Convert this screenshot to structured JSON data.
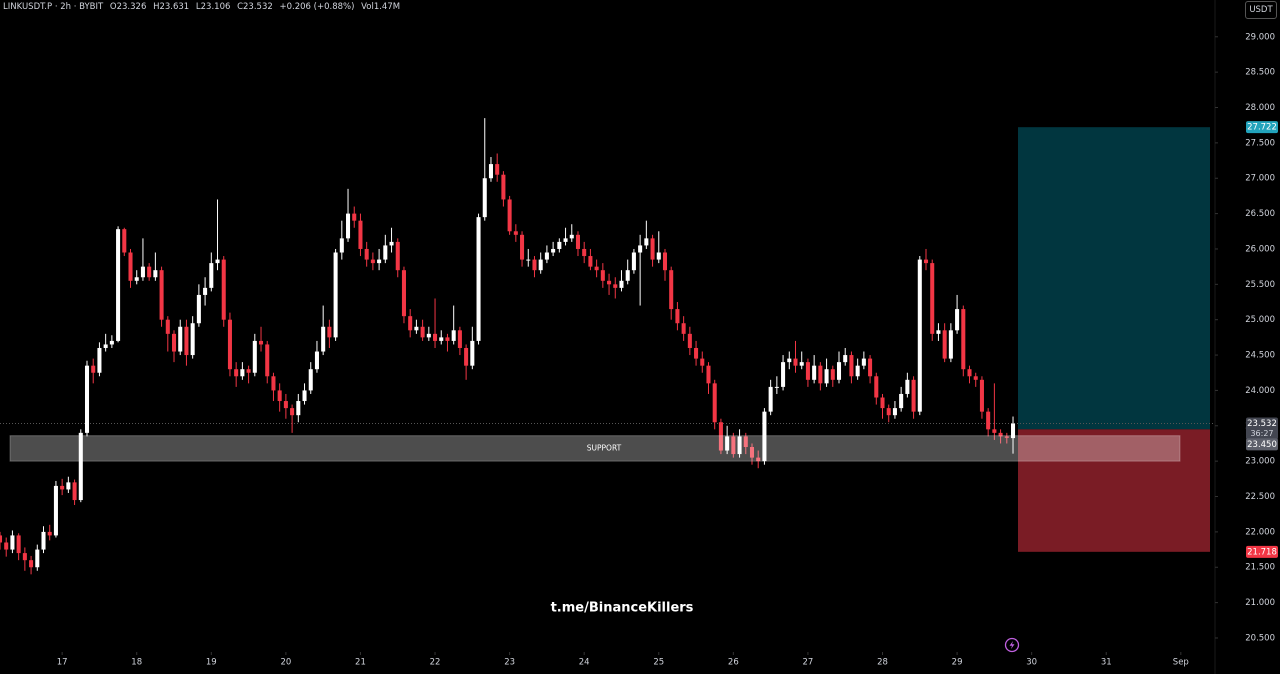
{
  "header": {
    "symbol": "LINKUSDT.P · 2h · BYBIT",
    "open": "O23.326",
    "high": "H23.631",
    "low": "L23.106",
    "close": "C23.532",
    "change": "+0.206 (+0.88%)",
    "volume": "Vol1.47M"
  },
  "currency": "USDT",
  "watermark": "t.me/BinanceKillers",
  "chart_data": {
    "type": "candlestick",
    "open": [
      21.95,
      21.85,
      21.75,
      21.95,
      21.7,
      21.6,
      21.5,
      21.75,
      22.0,
      21.95,
      22.65,
      22.6,
      22.7,
      22.45,
      23.4,
      24.35,
      24.25,
      24.6,
      24.65,
      24.7,
      26.28,
      25.95,
      25.55,
      25.6,
      25.75,
      25.6,
      25.7,
      25.0,
      24.8,
      24.55,
      24.9,
      24.5,
      24.95,
      25.35,
      25.45,
      25.8,
      25.85,
      25.0,
      24.3,
      24.2,
      24.3,
      24.25,
      24.7,
      24.65,
      24.2,
      24.0,
      23.85,
      23.75,
      23.65,
      23.85,
      24.0,
      24.3,
      24.55,
      24.9,
      24.75,
      25.95,
      26.15,
      26.5,
      26.4,
      26.0,
      25.85,
      25.8,
      25.85,
      26.05,
      26.1,
      25.7,
      25.05,
      24.85,
      24.9,
      24.75,
      24.8,
      24.7,
      24.75,
      24.7,
      24.85,
      24.6,
      24.35,
      24.7,
      26.45,
      27.0,
      27.2,
      27.05,
      26.7,
      26.25,
      26.2,
      25.85,
      25.85,
      25.7,
      25.85,
      25.95,
      26.0,
      26.1,
      26.15,
      26.2,
      26.0,
      25.9,
      25.75,
      25.7,
      25.55,
      25.5,
      25.45,
      25.55,
      25.7,
      25.95,
      26.05,
      26.15,
      25.85,
      25.95,
      25.7,
      25.15,
      24.95,
      24.8,
      24.6,
      24.45,
      24.35,
      24.1,
      23.55,
      23.15,
      23.35,
      23.1,
      23.35,
      23.2,
      23.05,
      23.0,
      23.7,
      24.05,
      24.05,
      24.4,
      24.45,
      24.35,
      24.4,
      24.15,
      24.35,
      24.1,
      24.3,
      24.15,
      24.4,
      24.5,
      24.2,
      24.35,
      24.45,
      24.2,
      23.9,
      23.75,
      23.65,
      23.75,
      23.95,
      24.15,
      23.7,
      25.85,
      25.8,
      24.8,
      24.85,
      24.45,
      24.85,
      25.15,
      24.3,
      24.2,
      24.15,
      23.7,
      23.45,
      23.4,
      23.35,
      23.326
    ],
    "high": [
      22.0,
      21.92,
      22.02,
      21.98,
      21.78,
      21.66,
      21.82,
      22.08,
      22.1,
      22.72,
      22.75,
      22.78,
      22.74,
      23.45,
      24.42,
      24.45,
      24.68,
      24.8,
      24.78,
      26.32,
      26.3,
      26.0,
      25.7,
      26.15,
      25.8,
      25.95,
      25.75,
      25.05,
      24.85,
      25.0,
      25.0,
      25.05,
      25.5,
      25.6,
      25.95,
      26.7,
      25.9,
      25.1,
      24.4,
      24.4,
      24.35,
      24.8,
      24.9,
      24.7,
      24.25,
      24.1,
      23.95,
      23.8,
      23.95,
      24.1,
      24.4,
      24.7,
      25.2,
      25.0,
      26.0,
      26.4,
      26.85,
      26.6,
      26.5,
      26.1,
      25.95,
      26.0,
      26.2,
      26.3,
      26.15,
      25.75,
      25.15,
      25.0,
      25.0,
      24.9,
      25.3,
      24.85,
      24.8,
      25.2,
      24.9,
      24.65,
      24.9,
      26.5,
      27.85,
      27.3,
      27.35,
      27.1,
      26.75,
      26.35,
      26.25,
      26.0,
      25.9,
      25.95,
      26.05,
      26.1,
      26.15,
      26.3,
      26.35,
      26.25,
      26.1,
      26.0,
      25.85,
      25.8,
      25.65,
      25.6,
      25.7,
      25.85,
      26.0,
      26.2,
      26.4,
      26.2,
      26.25,
      26.0,
      25.75,
      25.25,
      25.05,
      24.9,
      24.7,
      24.55,
      24.4,
      24.15,
      23.6,
      23.5,
      23.4,
      23.45,
      23.4,
      23.25,
      23.15,
      23.75,
      24.15,
      24.2,
      24.5,
      24.55,
      24.7,
      24.55,
      24.45,
      24.5,
      24.4,
      24.45,
      24.35,
      24.55,
      24.6,
      24.55,
      24.45,
      24.55,
      24.5,
      24.25,
      23.95,
      23.8,
      23.85,
      24.05,
      24.25,
      24.2,
      25.9,
      26.0,
      25.85,
      24.95,
      24.95,
      24.95,
      25.35,
      25.2,
      24.35,
      24.25,
      24.2,
      23.75,
      24.1,
      23.45,
      23.4,
      23.631
    ],
    "low": [
      21.75,
      21.65,
      21.7,
      21.6,
      21.45,
      21.4,
      21.45,
      21.7,
      21.88,
      21.92,
      22.52,
      22.55,
      22.38,
      22.42,
      23.35,
      24.1,
      24.2,
      24.55,
      24.6,
      24.68,
      25.9,
      25.45,
      25.5,
      25.55,
      25.55,
      25.55,
      24.9,
      24.55,
      24.4,
      24.5,
      24.35,
      24.45,
      24.9,
      25.2,
      25.4,
      25.7,
      24.9,
      24.2,
      24.05,
      24.15,
      24.1,
      24.2,
      24.55,
      24.1,
      23.85,
      23.7,
      23.6,
      23.4,
      23.55,
      23.8,
      23.95,
      24.25,
      24.5,
      24.6,
      24.7,
      25.85,
      26.1,
      26.3,
      25.9,
      25.75,
      25.7,
      25.7,
      25.8,
      25.95,
      25.6,
      24.95,
      24.75,
      24.8,
      24.7,
      24.7,
      24.6,
      24.65,
      24.55,
      24.65,
      24.5,
      24.15,
      24.3,
      24.65,
      26.4,
      26.95,
      26.95,
      26.6,
      26.2,
      26.1,
      25.75,
      25.75,
      25.6,
      25.65,
      25.8,
      25.9,
      25.95,
      26.05,
      26.1,
      25.9,
      25.8,
      25.7,
      25.6,
      25.45,
      25.35,
      25.3,
      25.4,
      25.5,
      25.65,
      25.2,
      26.0,
      25.75,
      25.8,
      25.55,
      25.0,
      24.85,
      24.7,
      24.5,
      24.35,
      24.25,
      23.95,
      23.45,
      23.1,
      23.1,
      23.05,
      23.05,
      23.1,
      22.95,
      22.9,
      22.95,
      23.65,
      23.95,
      24.0,
      24.3,
      24.25,
      24.3,
      24.05,
      24.1,
      24.0,
      24.05,
      24.05,
      24.1,
      24.35,
      24.1,
      24.15,
      24.3,
      24.1,
      23.8,
      23.6,
      23.55,
      23.6,
      23.7,
      23.9,
      23.6,
      23.65,
      25.7,
      24.7,
      24.7,
      24.4,
      24.4,
      24.8,
      24.2,
      24.1,
      24.05,
      23.6,
      23.35,
      23.3,
      23.25,
      23.25,
      23.106
    ],
    "close": [
      21.85,
      21.75,
      21.95,
      21.7,
      21.6,
      21.5,
      21.75,
      22.0,
      21.95,
      22.65,
      22.6,
      22.7,
      22.45,
      23.4,
      24.35,
      24.25,
      24.6,
      24.65,
      24.7,
      26.28,
      25.95,
      25.55,
      25.6,
      25.75,
      25.6,
      25.7,
      25.0,
      24.8,
      24.55,
      24.9,
      24.5,
      24.95,
      25.35,
      25.45,
      25.8,
      25.85,
      25.0,
      24.3,
      24.2,
      24.3,
      24.25,
      24.7,
      24.65,
      24.2,
      24.0,
      23.85,
      23.75,
      23.65,
      23.85,
      24.0,
      24.3,
      24.55,
      24.9,
      24.75,
      25.95,
      26.15,
      26.5,
      26.4,
      26.0,
      25.85,
      25.8,
      25.85,
      26.05,
      26.1,
      25.7,
      25.05,
      24.85,
      24.9,
      24.75,
      24.8,
      24.7,
      24.75,
      24.7,
      24.85,
      24.6,
      24.35,
      24.7,
      26.45,
      27.0,
      27.2,
      27.05,
      26.7,
      26.25,
      26.2,
      25.85,
      25.85,
      25.7,
      25.85,
      25.95,
      26.0,
      26.1,
      26.15,
      26.2,
      26.0,
      25.9,
      25.75,
      25.7,
      25.55,
      25.5,
      25.45,
      25.55,
      25.7,
      25.95,
      26.05,
      26.15,
      25.85,
      25.95,
      25.7,
      25.15,
      24.95,
      24.8,
      24.6,
      24.45,
      24.35,
      24.1,
      23.55,
      23.15,
      23.35,
      23.1,
      23.35,
      23.2,
      23.05,
      23.0,
      23.7,
      24.05,
      24.05,
      24.4,
      24.45,
      24.35,
      24.4,
      24.15,
      24.35,
      24.1,
      24.3,
      24.15,
      24.4,
      24.5,
      24.2,
      24.35,
      24.45,
      24.2,
      23.9,
      23.75,
      23.65,
      23.75,
      23.95,
      24.15,
      23.7,
      25.85,
      25.8,
      24.8,
      24.85,
      24.45,
      24.85,
      25.15,
      24.3,
      24.2,
      24.15,
      23.7,
      23.45,
      23.4,
      23.35,
      23.33,
      23.532
    ],
    "up_color": "#ffffff",
    "down_color": "#f23645",
    "xlim": [
      0,
      195.5
    ],
    "xticks": [
      {
        "value": 10,
        "label": "17"
      },
      {
        "value": 22,
        "label": "18"
      },
      {
        "value": 34,
        "label": "19"
      },
      {
        "value": 46,
        "label": "20"
      },
      {
        "value": 58,
        "label": "21"
      },
      {
        "value": 70,
        "label": "22"
      },
      {
        "value": 82,
        "label": "23"
      },
      {
        "value": 94,
        "label": "24"
      },
      {
        "value": 106,
        "label": "25"
      },
      {
        "value": 118,
        "label": "26"
      },
      {
        "value": 130,
        "label": "27"
      },
      {
        "value": 142,
        "label": "28"
      },
      {
        "value": 154,
        "label": "29"
      },
      {
        "value": 166,
        "label": "30"
      },
      {
        "value": 178,
        "label": "31"
      },
      {
        "value": 190,
        "label": "Sep"
      }
    ],
    "ylim": [
      20.33,
      29.52
    ],
    "yticks": [
      {
        "value": 20.5,
        "label": "20.500"
      },
      {
        "value": 21,
        "label": "21.000"
      },
      {
        "value": 21.5,
        "label": "21.500"
      },
      {
        "value": 22,
        "label": "22.000"
      },
      {
        "value": 22.5,
        "label": "22.500"
      },
      {
        "value": 23,
        "label": "23.000"
      },
      {
        "value": 23.5,
        "label": "23.500"
      },
      {
        "value": 24,
        "label": "24.000"
      },
      {
        "value": 24.5,
        "label": "24.500"
      },
      {
        "value": 25,
        "label": "25.000"
      },
      {
        "value": 25.5,
        "label": "25.500"
      },
      {
        "value": 26,
        "label": "26.000"
      },
      {
        "value": 26.5,
        "label": "26.500"
      },
      {
        "value": 27,
        "label": "27.000"
      },
      {
        "value": 27.5,
        "label": "27.500"
      },
      {
        "value": 28,
        "label": "28.000"
      },
      {
        "value": 28.5,
        "label": "28.500"
      },
      {
        "value": 29,
        "label": "29.000"
      }
    ],
    "current_price": {
      "value": 23.532,
      "label": "23.532"
    },
    "countdown": "36:27",
    "support_zone": {
      "label": "SUPPORT",
      "low": 23.0,
      "high": 23.36
    },
    "position": {
      "target": {
        "value": 27.722,
        "label": "27.722"
      },
      "entry": {
        "value": 23.45,
        "label": "23.450"
      },
      "stop": {
        "value": 21.718,
        "label": "21.718"
      },
      "profit_color": "#01363f",
      "loss_color": "#7a1c25"
    }
  }
}
